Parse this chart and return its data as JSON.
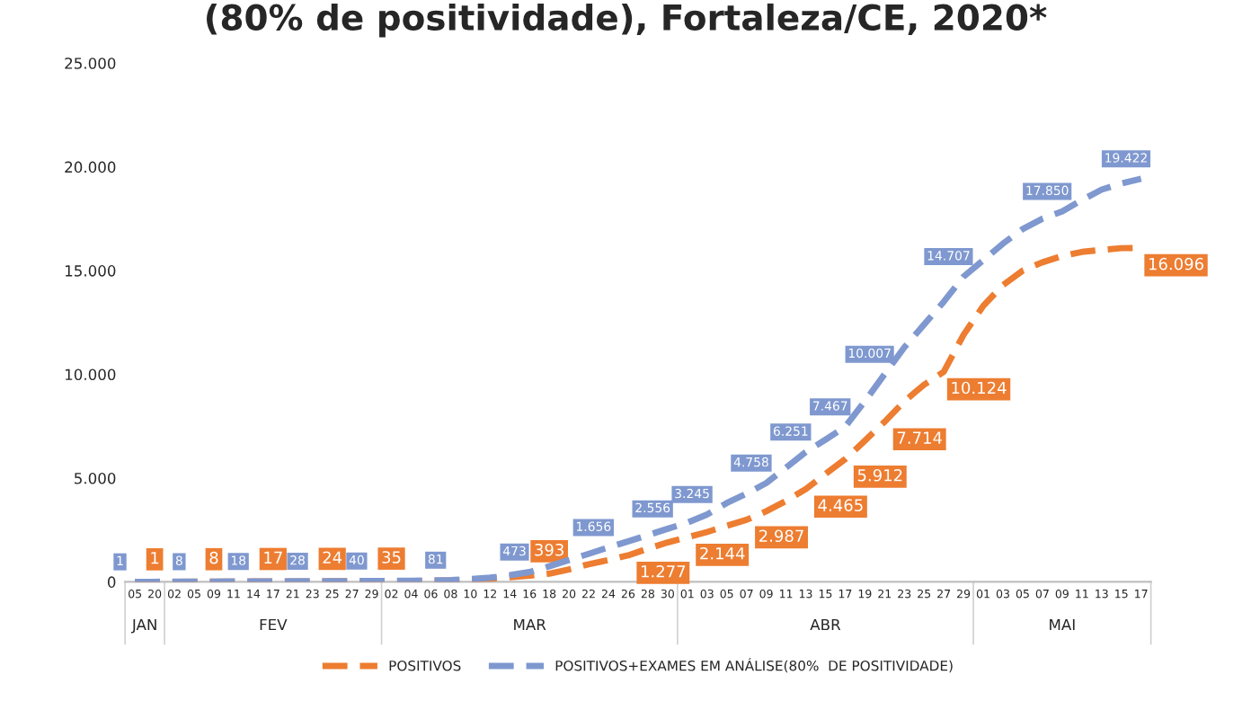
{
  "chart_data": {
    "type": "line",
    "title": "(80% de positividade), Fortaleza/CE, 2020*",
    "categories": [
      "05",
      "20",
      "02",
      "05",
      "09",
      "11",
      "14",
      "17",
      "21",
      "23",
      "25",
      "27",
      "29",
      "02",
      "04",
      "06",
      "08",
      "10",
      "12",
      "14",
      "16",
      "18",
      "20",
      "22",
      "24",
      "26",
      "28",
      "30",
      "01",
      "03",
      "05",
      "07",
      "09",
      "11",
      "13",
      "15",
      "17",
      "19",
      "21",
      "23",
      "25",
      "27",
      "29",
      "01",
      "03",
      "05",
      "07",
      "09",
      "11",
      "13",
      "15",
      "17"
    ],
    "annotations": [
      "JAN",
      "FEV",
      "MAR",
      "ABR",
      "MAI"
    ],
    "series": [
      {
        "name": "POSITIVOS",
        "color": "#ed7d31",
        "values": [
          0,
          1,
          2,
          5,
          8,
          10,
          14,
          17,
          20,
          22,
          24,
          28,
          30,
          35,
          40,
          50,
          70,
          100,
          150,
          220,
          300,
          393,
          600,
          850,
          1050,
          1277,
          1600,
          1900,
          2144,
          2400,
          2700,
          2987,
          3400,
          3900,
          4465,
          5200,
          5912,
          6800,
          7714,
          8700,
          9500,
          10124,
          11900,
          13300,
          14300,
          15000,
          15400,
          15700,
          15900,
          16000,
          16080,
          16096
        ],
        "value_labels": [
          null,
          "1",
          null,
          null,
          "8",
          null,
          null,
          "17",
          null,
          null,
          "24",
          null,
          null,
          "35",
          null,
          null,
          null,
          null,
          null,
          null,
          null,
          "393",
          null,
          null,
          null,
          "1.277",
          null,
          null,
          "2.144",
          null,
          null,
          "2.987",
          null,
          null,
          "4.465",
          null,
          "5.912",
          null,
          "7.714",
          null,
          null,
          "10.124",
          null,
          null,
          null,
          null,
          null,
          null,
          null,
          null,
          null,
          "16.096"
        ]
      },
      {
        "name": "POSITIVOS+EXAMES EM ANÁLISE(80%  DE POSITIVIDADE)",
        "color": "#7f98cf",
        "values": [
          1,
          2,
          4,
          8,
          11,
          14,
          18,
          22,
          25,
          28,
          30,
          34,
          40,
          45,
          55,
          65,
          81,
          130,
          200,
          320,
          473,
          750,
          1050,
          1350,
          1656,
          1950,
          2250,
          2556,
          2850,
          3245,
          3800,
          4250,
          4758,
          5500,
          6251,
          6850,
          7467,
          8700,
          10007,
          11300,
          12400,
          13500,
          14707,
          15500,
          16300,
          17000,
          17500,
          17850,
          18400,
          18900,
          19200,
          19422
        ],
        "value_labels": [
          "1",
          null,
          null,
          "8",
          null,
          null,
          "18",
          null,
          null,
          "28",
          null,
          null,
          "40",
          null,
          null,
          null,
          "81",
          null,
          null,
          null,
          "473",
          null,
          null,
          null,
          "1.656",
          null,
          null,
          "2.556",
          null,
          "3.245",
          null,
          null,
          "4.758",
          null,
          "6.251",
          null,
          "7.467",
          null,
          "10.007",
          null,
          null,
          null,
          "14.707",
          null,
          null,
          null,
          null,
          "17.850",
          null,
          null,
          null,
          "19.422"
        ]
      }
    ],
    "ylim": [
      0,
      25000
    ],
    "yticks": [
      {
        "value": 0,
        "label": "0"
      },
      {
        "value": 5000,
        "label": "5.000"
      },
      {
        "value": 10000,
        "label": "10.000"
      },
      {
        "value": 15000,
        "label": "15.000"
      },
      {
        "value": 20000,
        "label": "20.000"
      },
      {
        "value": 25000,
        "label": "25.000"
      }
    ],
    "line_style": "dashed",
    "legend": "bottom",
    "grid": false
  }
}
